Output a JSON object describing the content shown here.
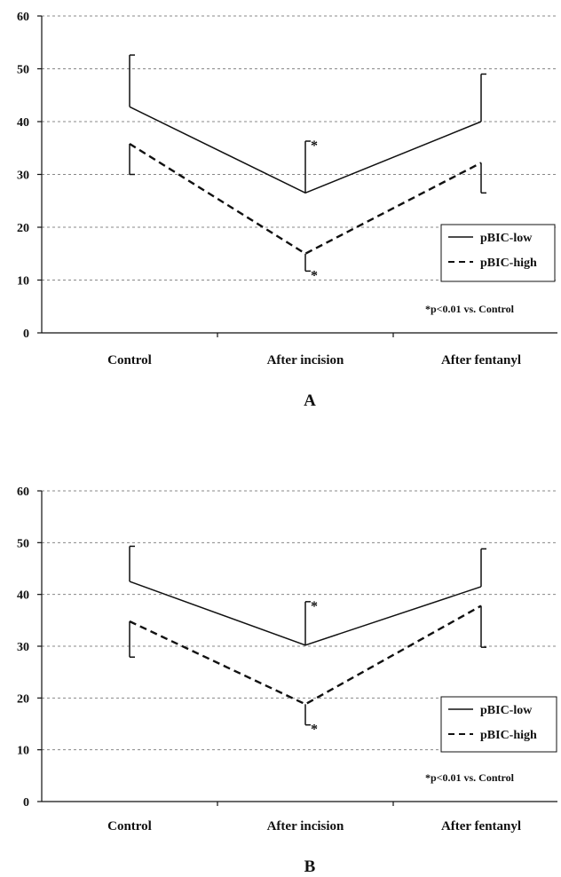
{
  "chart_data": [
    {
      "type": "line",
      "panel_label": "A",
      "categories": [
        "Control",
        "After incision",
        "After fentanyl"
      ],
      "ylim": [
        0,
        60
      ],
      "yticks": [
        "0",
        "10",
        "20",
        "30",
        "40",
        "50",
        "60"
      ],
      "grid": "dashed horizontal",
      "legend_position": "right",
      "series": [
        {
          "name": "pBIC-low",
          "style": "solid",
          "values": [
            42.8,
            26.5,
            40.0
          ],
          "error": [
            9.8,
            9.8,
            9.0
          ],
          "error_dir": "up",
          "star_labels": [
            "",
            "*",
            ""
          ]
        },
        {
          "name": "pBIC-high",
          "style": "dashed",
          "values": [
            35.8,
            15.0,
            32.2
          ],
          "error": [
            5.8,
            3.3,
            5.7
          ],
          "error_dir": "down",
          "star_labels": [
            "",
            "*",
            ""
          ]
        }
      ],
      "annotation": "*p<0.01 vs. Control"
    },
    {
      "type": "line",
      "panel_label": "B",
      "categories": [
        "Control",
        "After incision",
        "After fentanyl"
      ],
      "ylim": [
        0,
        60
      ],
      "yticks": [
        "0",
        "10",
        "20",
        "30",
        "40",
        "50",
        "60"
      ],
      "grid": "dashed horizontal",
      "legend_position": "right",
      "series": [
        {
          "name": "pBIC-low",
          "style": "solid",
          "values": [
            42.5,
            30.2,
            41.5
          ],
          "error": [
            6.8,
            8.4,
            7.3
          ],
          "error_dir": "up",
          "star_labels": [
            "",
            "*",
            ""
          ]
        },
        {
          "name": "pBIC-high",
          "style": "dashed",
          "values": [
            34.8,
            18.8,
            37.8
          ],
          "error": [
            6.9,
            4.0,
            8.0
          ],
          "error_dir": "down",
          "star_labels": [
            "",
            "*",
            ""
          ]
        }
      ],
      "annotation": "*p<0.01 vs. Control"
    }
  ],
  "colors": {
    "ink": "#111111",
    "grid": "#888888",
    "background": "#ffffff"
  }
}
